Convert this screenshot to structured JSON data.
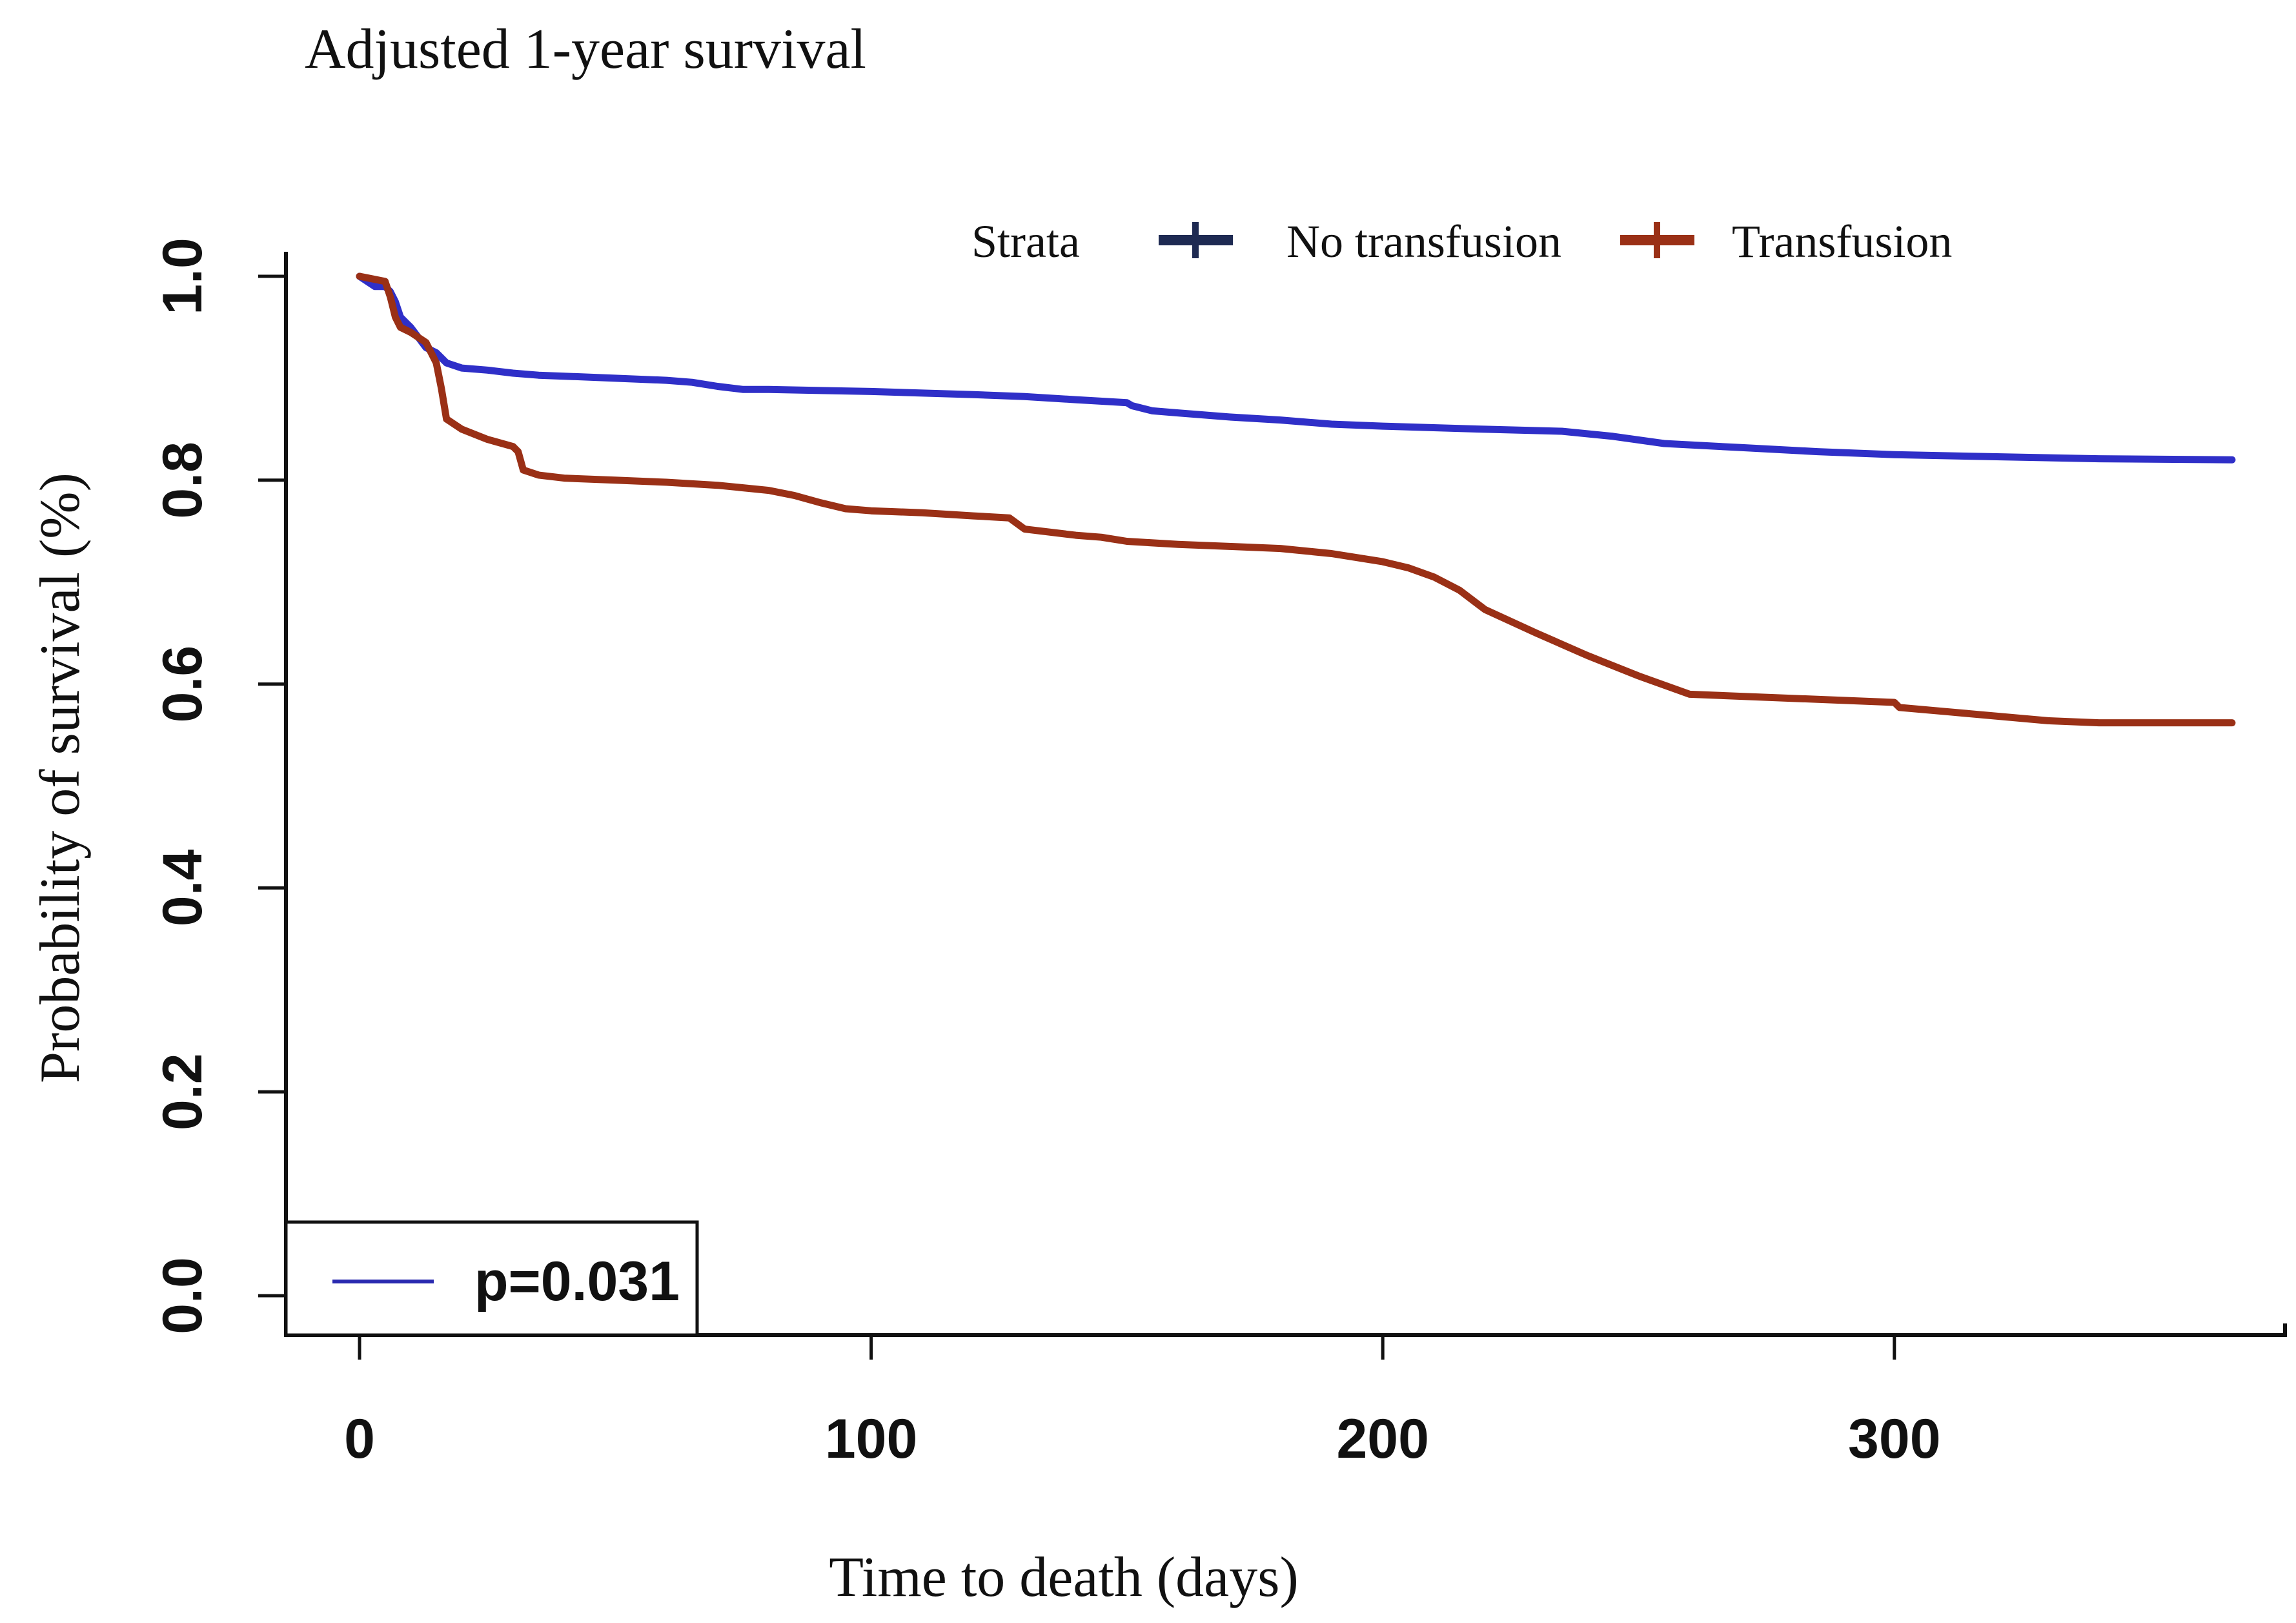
{
  "chart_data": {
    "type": "line",
    "title": "Adjusted 1-year survival",
    "xlabel": "Time to death (days)",
    "ylabel": "Probability of survival (%)",
    "xlim": [
      0,
      365
    ],
    "ylim": [
      0,
      1
    ],
    "x_ticks": [
      0,
      100,
      200,
      300
    ],
    "x_tick_labels": [
      "0",
      "100",
      "200",
      "300"
    ],
    "y_ticks": [
      0,
      0.2,
      0.4,
      0.6,
      0.8,
      1.0
    ],
    "y_tick_labels": [
      "0.0",
      "0.2",
      "0.4",
      "0.6",
      "0.8",
      "1.0"
    ],
    "grid": false,
    "legend": {
      "title": "Strata",
      "position": "top-right",
      "entries": [
        "No transfusion",
        "Transfusion"
      ]
    },
    "annotation": {
      "text": "p=0.031",
      "position": "bottom-left",
      "line_color": "#2a2ab0"
    },
    "series": [
      {
        "name": "No transfusion",
        "color": "#2f2fc8",
        "legend_color": "#1e2a52",
        "x": [
          0,
          3,
          5,
          6,
          7,
          8,
          10,
          13,
          15,
          17,
          20,
          25,
          30,
          35,
          40,
          50,
          60,
          65,
          70,
          75,
          80,
          100,
          120,
          130,
          140,
          150,
          151,
          155,
          160,
          170,
          180,
          190,
          200,
          220,
          235,
          245,
          255,
          270,
          285,
          300,
          320,
          340,
          366
        ],
        "y": [
          1.0,
          0.99,
          0.99,
          0.985,
          0.975,
          0.96,
          0.95,
          0.93,
          0.925,
          0.915,
          0.91,
          0.908,
          0.905,
          0.903,
          0.902,
          0.9,
          0.898,
          0.896,
          0.892,
          0.889,
          0.889,
          0.887,
          0.884,
          0.882,
          0.879,
          0.876,
          0.873,
          0.868,
          0.866,
          0.862,
          0.859,
          0.855,
          0.853,
          0.85,
          0.848,
          0.843,
          0.836,
          0.832,
          0.828,
          0.825,
          0.823,
          0.821,
          0.82
        ]
      },
      {
        "name": "Transfusion",
        "color": "#9a3016",
        "legend_color": "#9a3016",
        "x": [
          0,
          2,
          5,
          6,
          7,
          8,
          10,
          13,
          15,
          16,
          17,
          20,
          25,
          30,
          31,
          32,
          35,
          40,
          50,
          60,
          70,
          80,
          85,
          90,
          95,
          100,
          110,
          120,
          127,
          130,
          140,
          145,
          150,
          160,
          170,
          180,
          190,
          200,
          205,
          210,
          215,
          220,
          230,
          240,
          250,
          260,
          280,
          300,
          301,
          310,
          330,
          340,
          366
        ],
        "y": [
          1.0,
          0.998,
          0.995,
          0.98,
          0.96,
          0.95,
          0.945,
          0.935,
          0.915,
          0.89,
          0.86,
          0.85,
          0.84,
          0.833,
          0.828,
          0.81,
          0.805,
          0.802,
          0.8,
          0.798,
          0.795,
          0.79,
          0.785,
          0.778,
          0.772,
          0.77,
          0.768,
          0.765,
          0.763,
          0.752,
          0.746,
          0.744,
          0.74,
          0.737,
          0.735,
          0.733,
          0.728,
          0.72,
          0.714,
          0.705,
          0.692,
          0.673,
          0.65,
          0.628,
          0.608,
          0.59,
          0.586,
          0.582,
          0.577,
          0.573,
          0.564,
          0.562,
          0.562
        ]
      }
    ]
  }
}
